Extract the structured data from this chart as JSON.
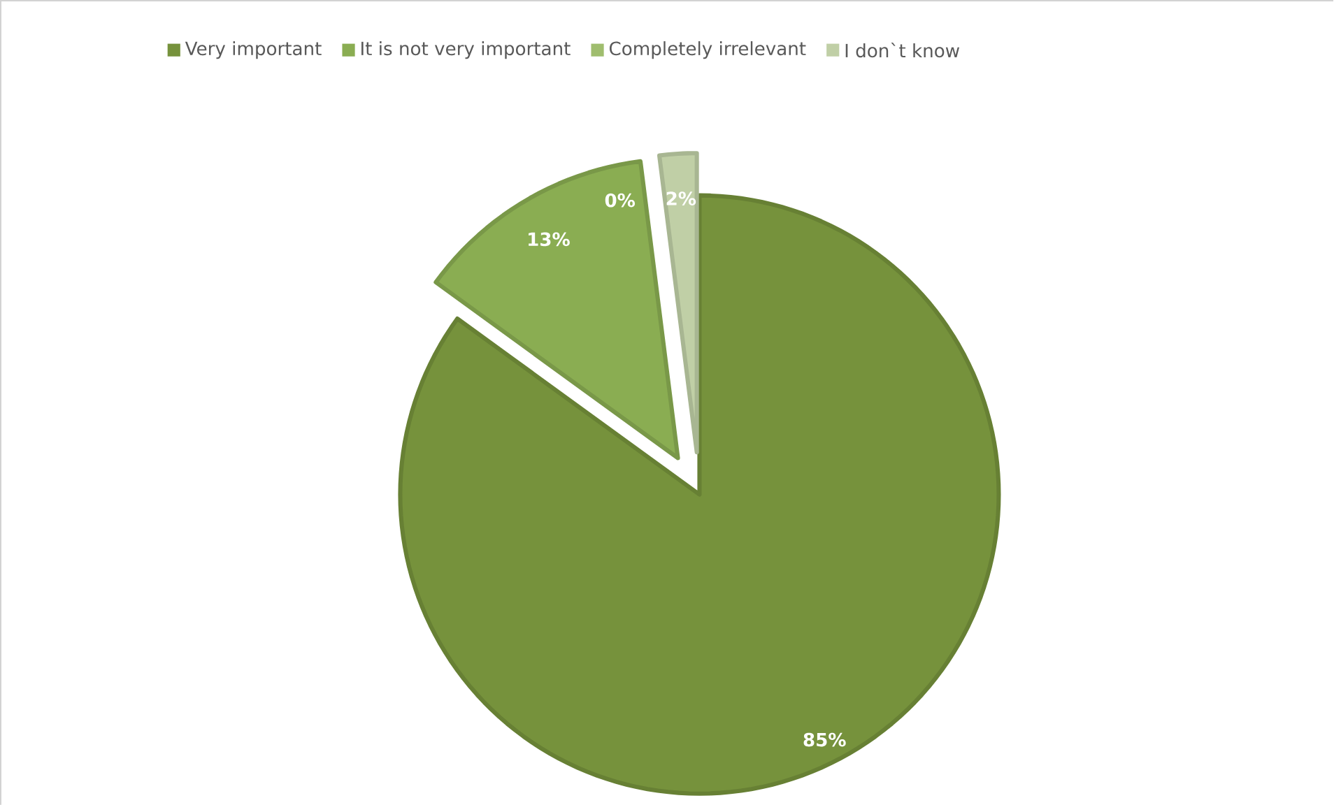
{
  "chart_data": {
    "type": "pie",
    "categories": [
      "Very important",
      "It is not very important",
      "Completely irrelevant",
      "I don`t know"
    ],
    "values": [
      85,
      13,
      0,
      2
    ],
    "colors": [
      "#76923c",
      "#8aad52",
      "#9fbd6e",
      "#c0cfa6"
    ],
    "value_labels": [
      "85%",
      "13%",
      "0%",
      "2%"
    ],
    "legend": "top"
  }
}
